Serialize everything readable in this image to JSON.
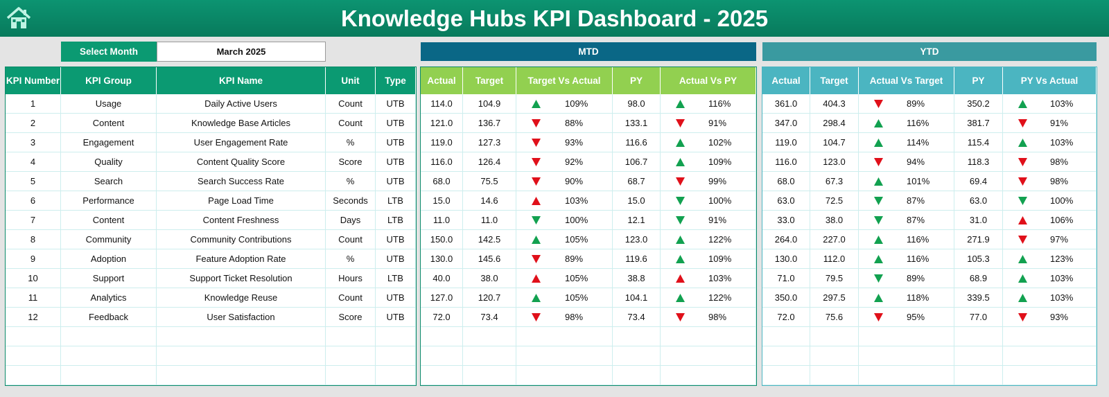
{
  "header": {
    "title": "Knowledge Hubs KPI Dashboard - 2025"
  },
  "filter": {
    "label": "Select Month",
    "value": "March 2025"
  },
  "sections": {
    "mtd": "MTD",
    "ytd": "YTD"
  },
  "table": {
    "columns": {
      "kpi": [
        "KPI Number",
        "KPI Group",
        "KPI Name",
        "Unit",
        "Type"
      ],
      "mtd": [
        "Actual",
        "Target",
        "Target Vs Actual",
        "PY",
        "Actual Vs PY"
      ],
      "ytd": [
        "Actual",
        "Target",
        "Actual Vs Target",
        "PY",
        "PY Vs Actual"
      ]
    },
    "rows": [
      {
        "kpi": [
          "1",
          "Usage",
          "Daily Active Users",
          "Count",
          "UTB"
        ],
        "mtd": [
          "114.0",
          "104.9",
          "109%",
          "98.0",
          "116%"
        ],
        "ytd": [
          "361.0",
          "404.3",
          "89%",
          "350.2",
          "103%"
        ],
        "arrows": {
          "mtd": [
            "up-green",
            "up-green"
          ],
          "ytd": [
            "down-red",
            "up-green"
          ]
        }
      },
      {
        "kpi": [
          "2",
          "Content",
          "Knowledge Base Articles",
          "Count",
          "UTB"
        ],
        "mtd": [
          "121.0",
          "136.7",
          "88%",
          "133.1",
          "91%"
        ],
        "ytd": [
          "347.0",
          "298.4",
          "116%",
          "381.7",
          "91%"
        ],
        "arrows": {
          "mtd": [
            "down-red",
            "down-red"
          ],
          "ytd": [
            "up-green",
            "down-red"
          ]
        }
      },
      {
        "kpi": [
          "3",
          "Engagement",
          "User Engagement Rate",
          "%",
          "UTB"
        ],
        "mtd": [
          "119.0",
          "127.3",
          "93%",
          "116.6",
          "102%"
        ],
        "ytd": [
          "119.0",
          "104.7",
          "114%",
          "115.4",
          "103%"
        ],
        "arrows": {
          "mtd": [
            "down-red",
            "up-green"
          ],
          "ytd": [
            "up-green",
            "up-green"
          ]
        }
      },
      {
        "kpi": [
          "4",
          "Quality",
          "Content Quality Score",
          "Score",
          "UTB"
        ],
        "mtd": [
          "116.0",
          "126.4",
          "92%",
          "106.7",
          "109%"
        ],
        "ytd": [
          "116.0",
          "123.0",
          "94%",
          "118.3",
          "98%"
        ],
        "arrows": {
          "mtd": [
            "down-red",
            "up-green"
          ],
          "ytd": [
            "down-red",
            "down-red"
          ]
        }
      },
      {
        "kpi": [
          "5",
          "Search",
          "Search Success Rate",
          "%",
          "UTB"
        ],
        "mtd": [
          "68.0",
          "75.5",
          "90%",
          "68.7",
          "99%"
        ],
        "ytd": [
          "68.0",
          "67.3",
          "101%",
          "69.4",
          "98%"
        ],
        "arrows": {
          "mtd": [
            "down-red",
            "down-red"
          ],
          "ytd": [
            "up-green",
            "down-red"
          ]
        }
      },
      {
        "kpi": [
          "6",
          "Performance",
          "Page Load Time",
          "Seconds",
          "LTB"
        ],
        "mtd": [
          "15.0",
          "14.6",
          "103%",
          "15.0",
          "100%"
        ],
        "ytd": [
          "63.0",
          "72.5",
          "87%",
          "63.0",
          "100%"
        ],
        "arrows": {
          "mtd": [
            "up-red",
            "down-green"
          ],
          "ytd": [
            "down-green",
            "down-green"
          ]
        }
      },
      {
        "kpi": [
          "7",
          "Content",
          "Content Freshness",
          "Days",
          "LTB"
        ],
        "mtd": [
          "11.0",
          "11.0",
          "100%",
          "12.1",
          "91%"
        ],
        "ytd": [
          "33.0",
          "38.0",
          "87%",
          "31.0",
          "106%"
        ],
        "arrows": {
          "mtd": [
            "down-green",
            "down-green"
          ],
          "ytd": [
            "down-green",
            "up-red"
          ]
        }
      },
      {
        "kpi": [
          "8",
          "Community",
          "Community Contributions",
          "Count",
          "UTB"
        ],
        "mtd": [
          "150.0",
          "142.5",
          "105%",
          "123.0",
          "122%"
        ],
        "ytd": [
          "264.0",
          "227.0",
          "116%",
          "271.9",
          "97%"
        ],
        "arrows": {
          "mtd": [
            "up-green",
            "up-green"
          ],
          "ytd": [
            "up-green",
            "down-red"
          ]
        }
      },
      {
        "kpi": [
          "9",
          "Adoption",
          "Feature Adoption Rate",
          "%",
          "UTB"
        ],
        "mtd": [
          "130.0",
          "145.6",
          "89%",
          "119.6",
          "109%"
        ],
        "ytd": [
          "130.0",
          "112.0",
          "116%",
          "105.3",
          "123%"
        ],
        "arrows": {
          "mtd": [
            "down-red",
            "up-green"
          ],
          "ytd": [
            "up-green",
            "up-green"
          ]
        }
      },
      {
        "kpi": [
          "10",
          "Support",
          "Support Ticket Resolution",
          "Hours",
          "LTB"
        ],
        "mtd": [
          "40.0",
          "38.0",
          "105%",
          "38.8",
          "103%"
        ],
        "ytd": [
          "71.0",
          "79.5",
          "89%",
          "68.9",
          "103%"
        ],
        "arrows": {
          "mtd": [
            "up-red",
            "up-red"
          ],
          "ytd": [
            "down-green",
            "up-green"
          ]
        }
      },
      {
        "kpi": [
          "11",
          "Analytics",
          "Knowledge Reuse",
          "Count",
          "UTB"
        ],
        "mtd": [
          "127.0",
          "120.7",
          "105%",
          "104.1",
          "122%"
        ],
        "ytd": [
          "350.0",
          "297.5",
          "118%",
          "339.5",
          "103%"
        ],
        "arrows": {
          "mtd": [
            "up-green",
            "up-green"
          ],
          "ytd": [
            "up-green",
            "up-green"
          ]
        }
      },
      {
        "kpi": [
          "12",
          "Feedback",
          "User Satisfaction",
          "Score",
          "UTB"
        ],
        "mtd": [
          "72.0",
          "73.4",
          "98%",
          "73.4",
          "98%"
        ],
        "ytd": [
          "72.0",
          "75.6",
          "95%",
          "77.0",
          "93%"
        ],
        "arrows": {
          "mtd": [
            "down-red",
            "down-red"
          ],
          "ytd": [
            "down-red",
            "down-red"
          ]
        }
      }
    ]
  }
}
